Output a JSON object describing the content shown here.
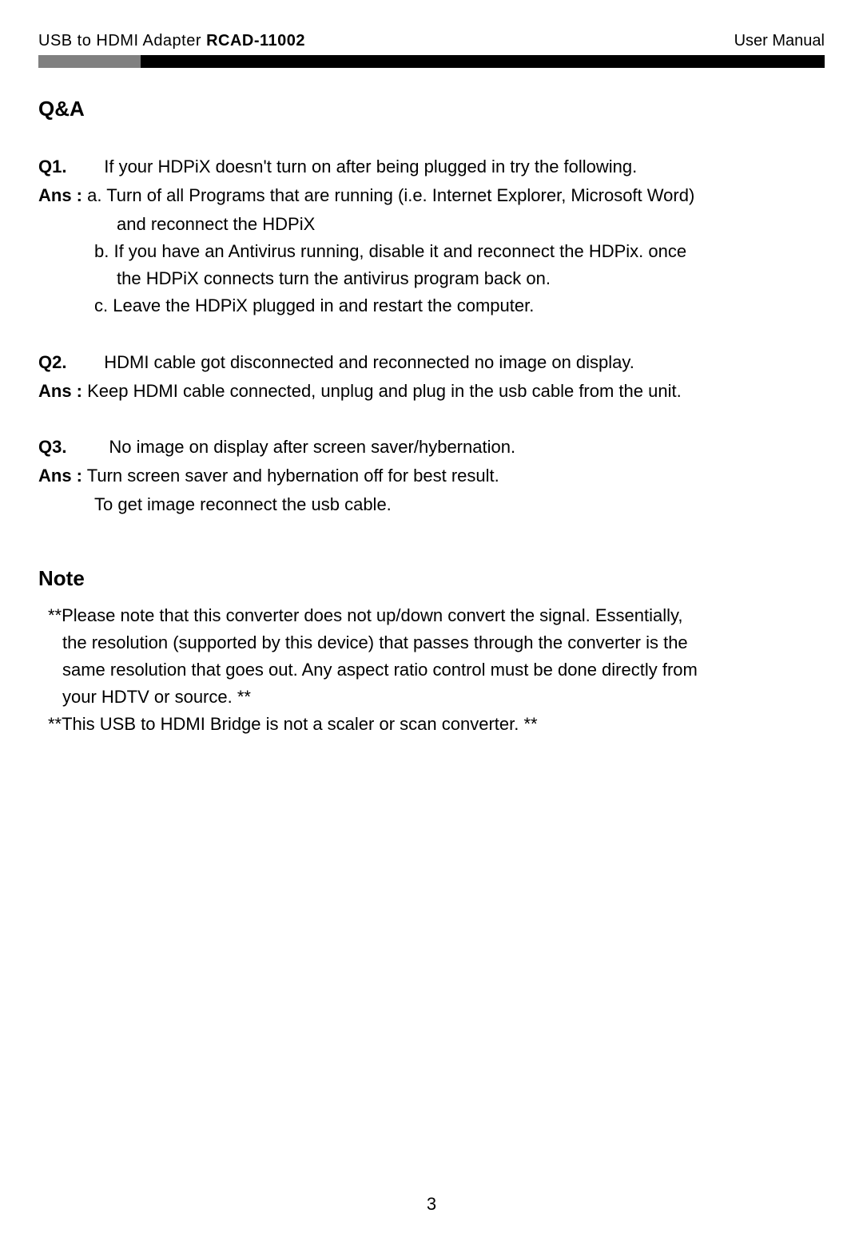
{
  "header": {
    "product_prefix": "USB to HDMI Adapter ",
    "model": "RCAD-11002",
    "right_label": "User Manual"
  },
  "qa": {
    "title": "Q&A",
    "items": [
      {
        "q_label": "Q1.",
        "q_text": "If your HDPiX doesn't turn on after being plugged in try the following.",
        "ans_label": "Ans :",
        "ans_lines": [
          "a. Turn of all Programs that are running (i.e. Internet Explorer, Microsoft Word)",
          "    and reconnect the HDPiX",
          "b. If you have an Antivirus running, disable it and reconnect the HDPix. once",
          "    the HDPiX connects turn the antivirus program back on.",
          "c. Leave the HDPiX plugged in and restart the computer."
        ]
      },
      {
        "q_label": "Q2.",
        "q_text": "HDMI cable got disconnected and reconnected no image on display.",
        "ans_label": "Ans :",
        "ans_lines": [
          "Keep HDMI cable connected, unplug and plug in the usb cable from the unit."
        ]
      },
      {
        "q_label": "Q3.",
        "q_text": "No image on display after screen saver/hybernation.",
        "ans_label": "Ans :",
        "ans_lines": [
          " Turn screen saver and hybernation off for best result.",
          " To get image reconnect the usb cable."
        ]
      }
    ]
  },
  "note": {
    "title": "Note",
    "lines": [
      "**Please note that this converter does not up/down convert the signal. Essentially,",
      "the resolution (supported by this device) that passes through the converter is the",
      "same resolution that goes out. Any aspect ratio control must be done directly from",
      "your HDTV or source. **",
      "**This USB to HDMI Bridge is not a scaler or scan converter. **"
    ]
  },
  "page_number": "3",
  "colors": {
    "bar_gray": "#808080",
    "bar_black": "#000000",
    "text": "#000000",
    "background": "#ffffff"
  },
  "typography": {
    "header_fontsize": 20,
    "title_fontsize": 26,
    "body_fontsize": 22,
    "line_height": 1.55
  }
}
